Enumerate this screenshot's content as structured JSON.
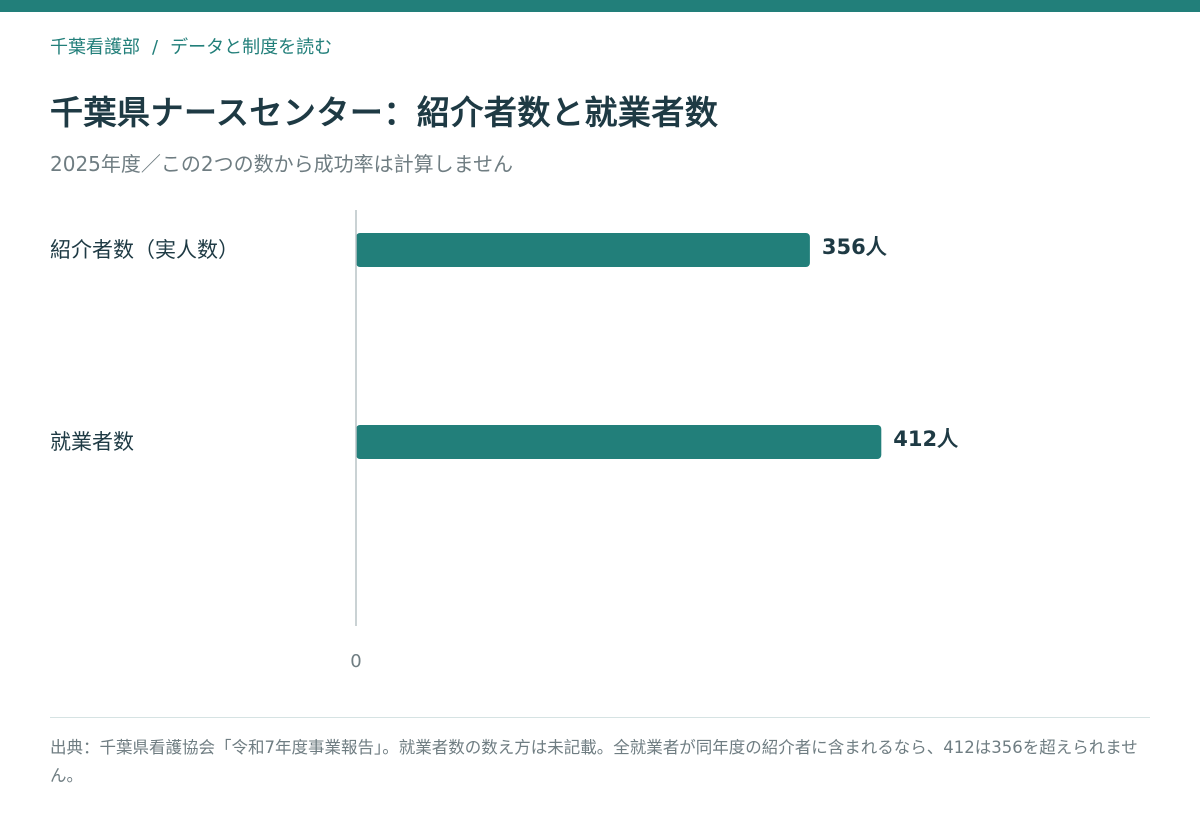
{
  "header": {
    "breadcrumb": {
      "parent": "千葉看護部",
      "separator": "/",
      "current": "データと制度を読む"
    },
    "title": "千葉県ナースセンター：紹介者数と就業者数",
    "subtitle": "2025年度／この2つの数から成功率は計算しません"
  },
  "colors": {
    "accent": "#227f7a",
    "text": "#1e3a44",
    "muted": "#6f7d82",
    "axis": "#b9c3c6"
  },
  "chart_data": {
    "type": "bar",
    "orientation": "horizontal",
    "categories": [
      "紹介者数（実人数）",
      "就業者数"
    ],
    "values": [
      356,
      412
    ],
    "value_labels": [
      "356人",
      "412人"
    ],
    "unit": "人",
    "xlim": [
      0,
      550
    ],
    "x_ticks": [
      0
    ],
    "x_tick_labels": [
      "0"
    ],
    "grid": false,
    "legend": "none"
  },
  "footer": {
    "source": "出典：千葉県看護協会「令和7年度事業報告」。就業者数の数え方は未記載。全就業者が同年度の紹介者に含まれるなら、412は356を超えられません。"
  }
}
